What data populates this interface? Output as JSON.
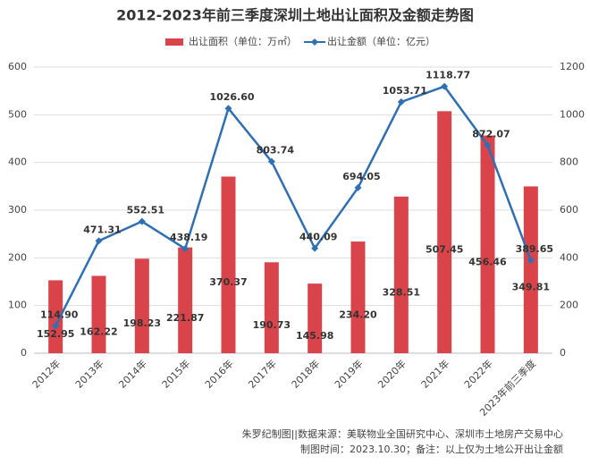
{
  "chart_data": {
    "type": "bar-line",
    "title": "2012-2023年前三季度深圳土地出让面积及金额走势图",
    "categories": [
      "2012年",
      "2013年",
      "2014年",
      "2015年",
      "2016年",
      "2017年",
      "2018年",
      "2019年",
      "2020年",
      "2021年",
      "2022年",
      "2023年前三季度"
    ],
    "series": [
      {
        "name": "出让面积（单位：万㎡）",
        "color": "#d9444b",
        "type": "bar",
        "values": [
          152.95,
          162.22,
          198.23,
          221.87,
          370.37,
          190.73,
          145.98,
          234.2,
          328.51,
          507.45,
          456.46,
          349.81
        ],
        "value_labels": [
          "152.95",
          "162.22",
          "198.23",
          "221.87",
          "370.37",
          "190.73",
          "145.98",
          "234.20",
          "328.51",
          "507.45",
          "456.46",
          "349.81"
        ]
      },
      {
        "name": "出让金额（单位：亿元）",
        "color": "#2e6fb5",
        "type": "line",
        "axis": "y2",
        "values": [
          114.9,
          471.31,
          552.51,
          438.19,
          1026.6,
          803.74,
          440.09,
          694.05,
          1053.71,
          1118.77,
          872.07,
          389.65
        ],
        "value_labels": [
          "114.90",
          "471.31",
          "552.51",
          "438.19",
          "1026.60",
          "803.74",
          "440.09",
          "694.05",
          "1053.71",
          "1118.77",
          "872.07",
          "389.65"
        ]
      }
    ],
    "ylim": [
      0,
      600
    ],
    "yticks": [
      0,
      100,
      200,
      300,
      400,
      500,
      600
    ],
    "y2lim": [
      0,
      1200
    ],
    "y2ticks": [
      0,
      200,
      400,
      600,
      800,
      1000,
      1200
    ],
    "grid": true,
    "footnotes": [
      "朱罗纪制图||数据来源：美联物业全国研究中心、深圳市土地房产交易中心",
      "制图时间：2023.10.30；备注：以上仅为土地公开出让金额"
    ]
  }
}
